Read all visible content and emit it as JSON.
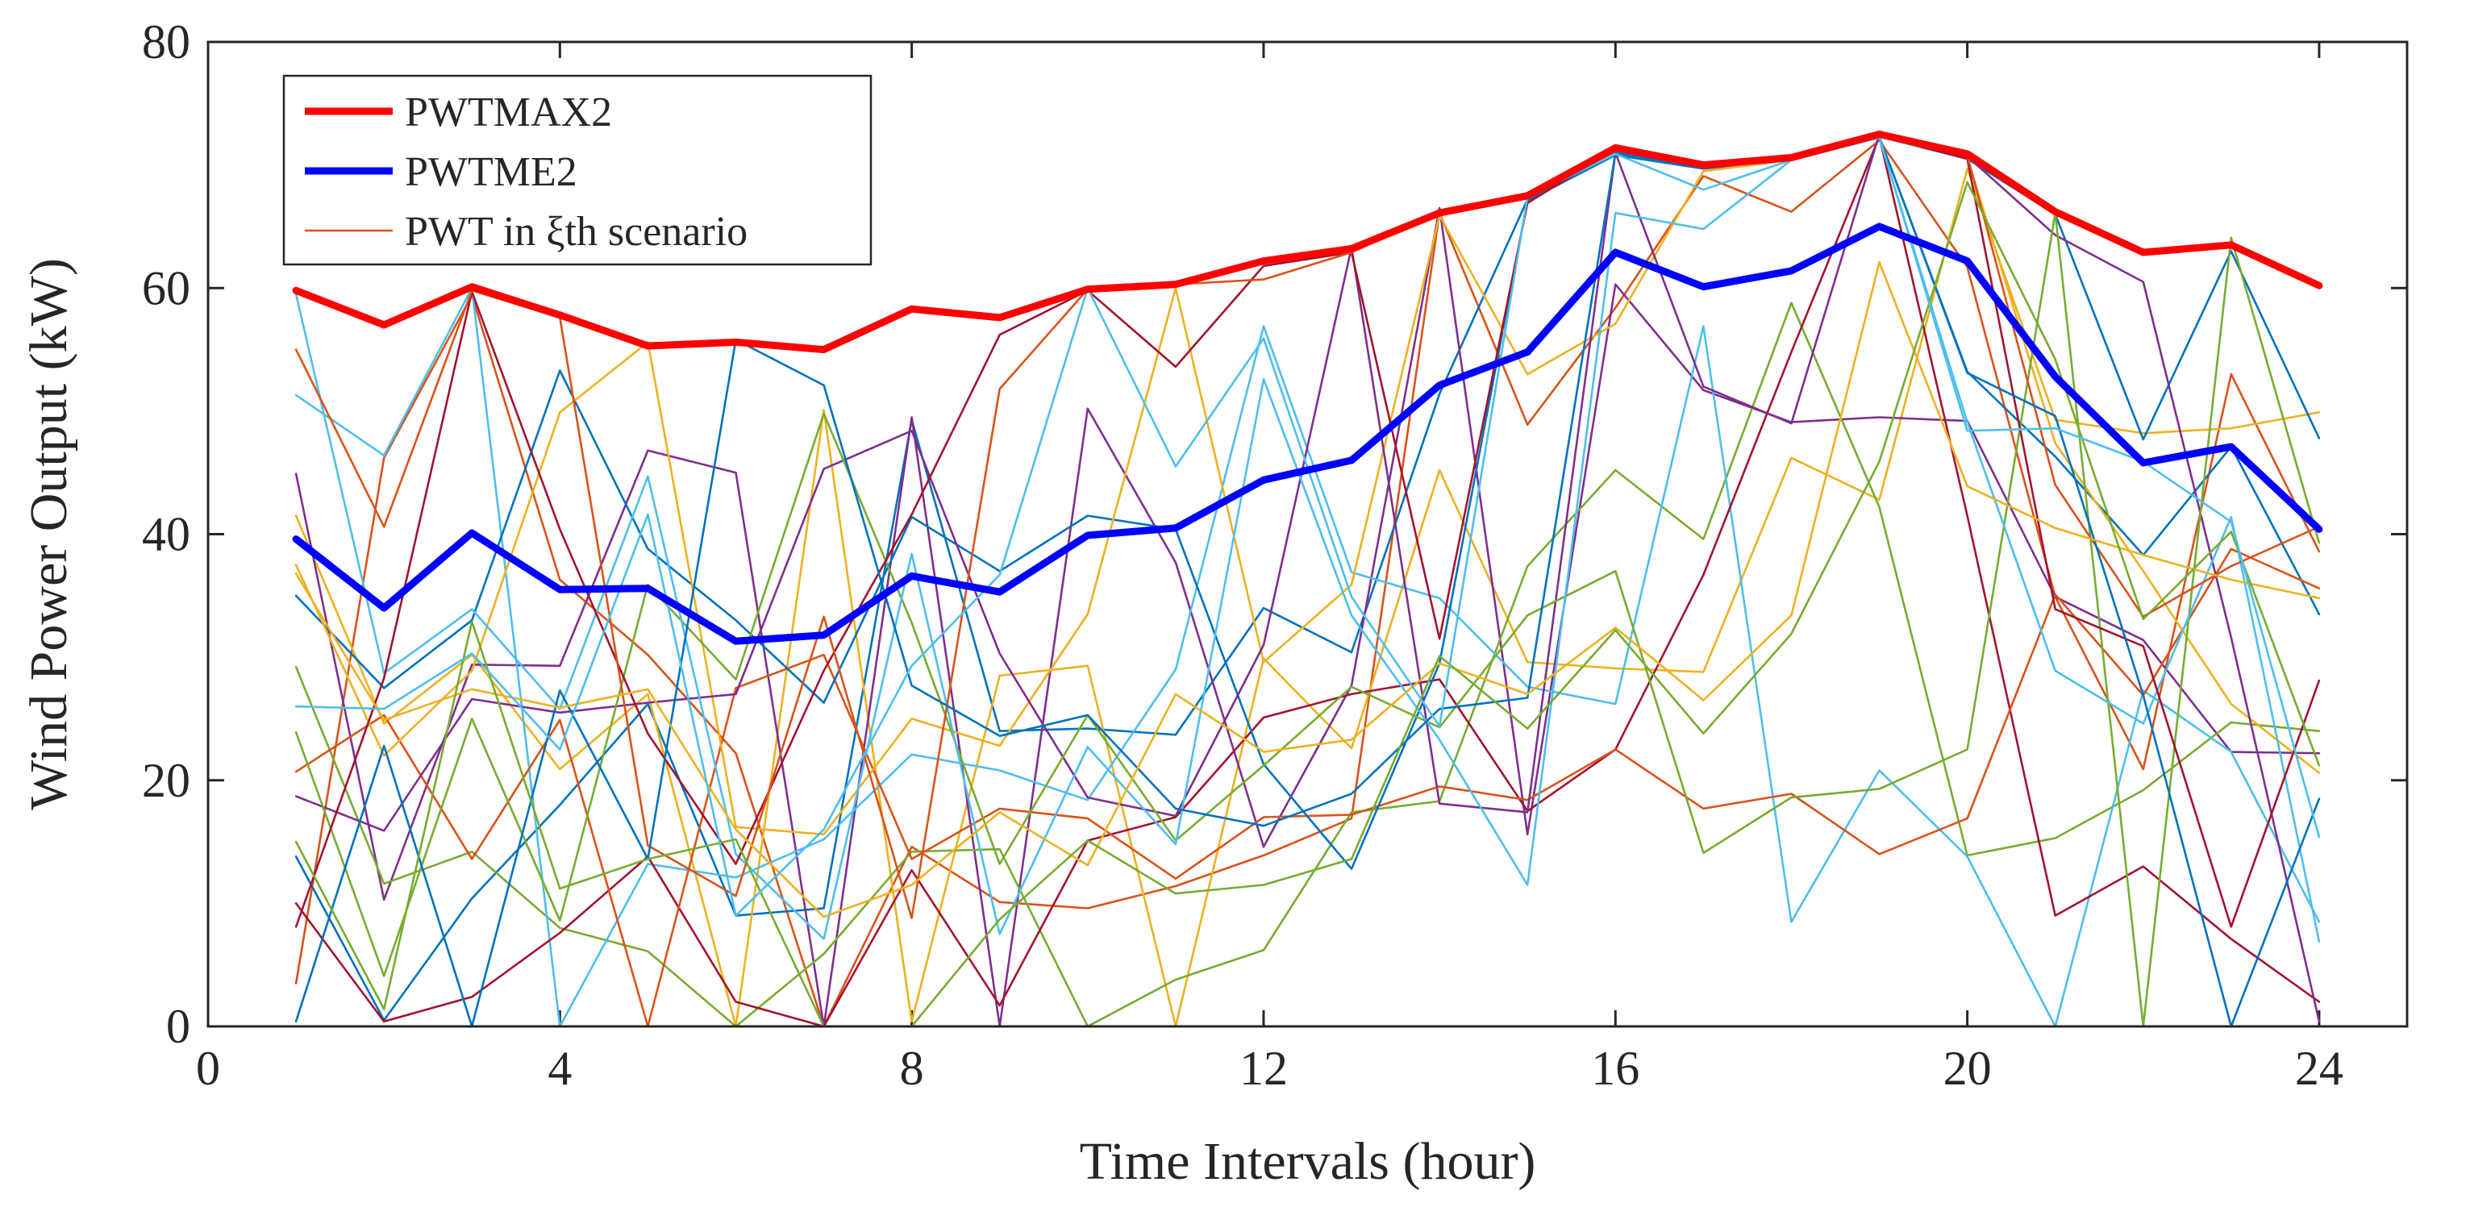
{
  "chart_data": {
    "type": "line",
    "title": "",
    "xlabel": "Time Intervals (hour)",
    "ylabel": "Wind Power Output (kW)",
    "xlim": [
      0,
      25
    ],
    "ylim": [
      0,
      80
    ],
    "x_ticks": [
      0,
      4,
      8,
      12,
      16,
      20,
      24
    ],
    "x_tick_labels": [
      "0",
      "4",
      "8",
      "12",
      "16",
      "20",
      "24"
    ],
    "y_ticks": [
      0,
      20,
      40,
      60,
      80
    ],
    "y_tick_labels": [
      "0",
      "20",
      "40",
      "60",
      "80"
    ],
    "legend_position": "top-left",
    "x": [
      1,
      2,
      3,
      4,
      5,
      6,
      7,
      8,
      9,
      10,
      11,
      12,
      13,
      14,
      15,
      16,
      17,
      18,
      19,
      20,
      21,
      22,
      23,
      24
    ],
    "series": [
      {
        "name": "PWTMAX2",
        "role": "max",
        "color": "#ff0000",
        "values": [
          59.8,
          57.0,
          60.1,
          57.8,
          55.3,
          55.6,
          55.0,
          58.3,
          57.6,
          59.9,
          60.3,
          62.2,
          63.2,
          66.1,
          67.5,
          71.4,
          70.0,
          70.6,
          72.5,
          70.9,
          66.2,
          62.9,
          63.5,
          60.2
        ]
      },
      {
        "name": "PWTME2",
        "role": "mean",
        "color": "#0000ff",
        "values": [
          39.6,
          34.0,
          40.1,
          35.5,
          35.6,
          31.3,
          31.8,
          36.6,
          35.3,
          39.9,
          40.5,
          44.4,
          46.0,
          52.1,
          54.8,
          62.9,
          60.1,
          61.4,
          65.0,
          62.2,
          52.8,
          45.8,
          47.1,
          40.4
        ]
      },
      {
        "name": "PWT in ξth scenario",
        "role": "scenario",
        "color": "#d95319",
        "values": [
          3.5,
          46.2,
          59.4,
          36.3,
          30.2,
          22.2,
          0.0,
          14.6,
          10.1,
          9.6,
          11.4,
          13.9,
          16.9,
          66.1,
          48.9,
          58.4,
          69.1,
          66.2,
          72.0,
          61.7,
          34.9,
          20.9,
          53.0,
          38.6
        ]
      },
      {
        "name": "",
        "role": "scenario",
        "color": "#0072bd",
        "values": [
          13.8,
          0.5,
          10.4,
          18.0,
          26.2,
          9.0,
          9.6,
          49.3,
          24.0,
          24.2,
          23.7,
          34.0,
          30.4,
          51.4,
          67.2,
          70.9,
          69.8,
          70.4,
          72.3,
          53.2,
          46.3,
          38.3,
          47.1,
          33.5
        ]
      },
      {
        "name": "",
        "role": "scenario",
        "color": "#edb120",
        "values": [
          41.5,
          24.6,
          30.2,
          20.9,
          27.0,
          0.0,
          50.1,
          0.4,
          28.5,
          29.3,
          0.0,
          29.9,
          22.6,
          45.2,
          29.6,
          29.1,
          28.8,
          46.2,
          42.8,
          69.7,
          49.3,
          48.2,
          48.6,
          49.9
        ]
      },
      {
        "name": "",
        "role": "scenario",
        "color": "#7e2f8e",
        "values": [
          44.9,
          10.3,
          29.4,
          29.3,
          46.8,
          45.0,
          0.0,
          49.5,
          0.0,
          50.2,
          37.7,
          14.6,
          27.7,
          66.5,
          15.6,
          60.3,
          51.7,
          49.1,
          49.5,
          49.2,
          34.9,
          31.4,
          22.3,
          22.2
        ]
      },
      {
        "name": "",
        "role": "scenario",
        "color": "#77ac30",
        "values": [
          29.2,
          11.6,
          14.2,
          8.0,
          6.1,
          0.0,
          5.9,
          14.2,
          14.4,
          0.0,
          3.8,
          6.2,
          17.4,
          18.3,
          37.4,
          45.2,
          39.6,
          58.8,
          42.2,
          13.9,
          15.3,
          19.2,
          24.7,
          24.0
        ]
      },
      {
        "name": "",
        "role": "scenario",
        "color": "#4dbeee",
        "values": [
          51.3,
          46.4,
          60.0,
          0.0,
          13.2,
          12.1,
          15.2,
          22.1,
          20.8,
          18.4,
          29.0,
          56.9,
          36.9,
          34.8,
          27.6,
          26.2,
          56.9,
          8.5,
          20.8,
          13.8,
          0.0,
          27.3,
          22.3,
          8.5
        ]
      },
      {
        "name": "",
        "role": "scenario",
        "color": "#a2142f",
        "values": [
          10.0,
          0.4,
          2.4,
          7.6,
          13.8,
          2.0,
          0.0,
          12.7,
          1.7,
          15.1,
          17.0,
          25.1,
          27.0,
          28.2,
          17.5,
          22.5,
          36.7,
          54.8,
          72.3,
          41.5,
          9.0,
          13.0,
          7.1,
          2.0
        ]
      },
      {
        "name": "",
        "role": "scenario",
        "color": "#d95319",
        "values": [
          20.7,
          25.3,
          13.6,
          24.9,
          0.0,
          27.5,
          30.2,
          13.6,
          17.7,
          16.9,
          12.0,
          17.0,
          17.2,
          19.5,
          18.4,
          22.5,
          17.7,
          18.9,
          14.0,
          16.9,
          35.1,
          26.9,
          38.8,
          35.6
        ]
      },
      {
        "name": "",
        "role": "scenario",
        "color": "#0072bd",
        "values": [
          35.0,
          27.5,
          33.0,
          53.3,
          38.8,
          33.0,
          26.3,
          41.4,
          37.0,
          41.5,
          40.4,
          21.3,
          12.8,
          29.5,
          67.1,
          70.8,
          69.7,
          70.4,
          72.3,
          70.5,
          66.0,
          47.7,
          63.0,
          47.8
        ]
      },
      {
        "name": "",
        "role": "scenario",
        "color": "#edb120",
        "values": [
          37.5,
          22.0,
          28.9,
          49.9,
          55.6,
          16.2,
          15.6,
          25.0,
          22.8,
          33.5,
          60.0,
          29.6,
          35.9,
          65.9,
          53.0,
          57.1,
          69.5,
          70.4,
          72.3,
          70.6,
          47.4,
          37.0,
          26.2,
          20.6
        ]
      },
      {
        "name": "",
        "role": "scenario",
        "color": "#7e2f8e",
        "values": [
          18.7,
          15.9,
          26.6,
          25.5,
          26.3,
          27.0,
          45.3,
          48.4,
          30.3,
          18.6,
          17.1,
          31.0,
          63.3,
          18.1,
          17.4,
          71.0,
          52.0,
          49.0,
          72.5,
          70.7,
          64.3,
          60.5,
          31.6,
          0.4
        ]
      },
      {
        "name": "",
        "role": "scenario",
        "color": "#77ac30",
        "values": [
          23.9,
          4.1,
          25.0,
          8.6,
          35.9,
          28.2,
          49.8,
          32.8,
          13.2,
          25.3,
          15.1,
          21.2,
          27.6,
          24.3,
          33.4,
          37.0,
          14.1,
          18.6,
          19.3,
          22.5,
          66.1,
          0.0,
          64.1,
          39.3
        ]
      },
      {
        "name": "",
        "role": "scenario",
        "color": "#4dbeee",
        "values": [
          59.5,
          28.7,
          33.9,
          25.8,
          44.7,
          14.0,
          7.1,
          38.4,
          7.5,
          22.7,
          14.8,
          52.6,
          33.4,
          23.3,
          11.5,
          66.1,
          64.8,
          70.4,
          72.2,
          49.1,
          28.9,
          24.6,
          41.4,
          6.9
        ]
      },
      {
        "name": "",
        "role": "scenario",
        "color": "#a2142f",
        "values": [
          8.1,
          28.3,
          59.7,
          40.4,
          23.8,
          13.2,
          28.9,
          41.6,
          56.2,
          59.8,
          53.6,
          61.8,
          62.9,
          31.5,
          66.9,
          71.3,
          69.9,
          70.5,
          72.4,
          70.5,
          33.9,
          30.9,
          8.1,
          28.1
        ]
      },
      {
        "name": "",
        "role": "scenario",
        "color": "#d95319",
        "values": [
          55.0,
          40.6,
          59.8,
          57.6,
          14.7,
          10.6,
          33.3,
          8.8,
          51.8,
          59.9,
          60.3,
          60.7,
          62.9,
          66.1,
          67.4,
          71.1,
          70.0,
          70.5,
          72.3,
          70.8,
          44.0,
          33.3,
          37.4,
          40.6
        ]
      },
      {
        "name": "",
        "role": "scenario",
        "color": "#0072bd",
        "values": [
          0.4,
          22.8,
          0.0,
          27.3,
          13.6,
          55.8,
          52.1,
          27.7,
          23.6,
          25.3,
          17.7,
          16.3,
          18.9,
          25.8,
          26.7,
          71.0,
          69.9,
          70.5,
          72.3,
          53.1,
          49.6,
          26.9,
          0.0,
          18.5
        ]
      },
      {
        "name": "",
        "role": "scenario",
        "color": "#edb120",
        "values": [
          36.8,
          24.9,
          27.4,
          25.9,
          27.4,
          16.0,
          8.9,
          11.5,
          17.4,
          13.1,
          27.0,
          22.3,
          23.3,
          29.5,
          27.0,
          32.4,
          26.5,
          33.4,
          62.1,
          43.9,
          40.5,
          38.3,
          36.3,
          34.8
        ]
      },
      {
        "name": "",
        "role": "scenario",
        "color": "#77ac30",
        "values": [
          15.0,
          1.4,
          32.9,
          11.2,
          13.6,
          15.2,
          0.0,
          0.0,
          8.7,
          15.1,
          10.8,
          11.5,
          13.6,
          30.1,
          24.2,
          32.2,
          23.8,
          31.9,
          45.9,
          68.6,
          54.2,
          33.1,
          40.2,
          21.2
        ]
      },
      {
        "name": "",
        "role": "scenario",
        "color": "#4dbeee",
        "values": [
          26.0,
          25.8,
          30.3,
          22.5,
          41.6,
          9.0,
          16.0,
          29.3,
          36.7,
          60.0,
          45.5,
          55.9,
          34.9,
          24.4,
          67.4,
          70.9,
          68.0,
          70.4,
          72.3,
          48.4,
          48.6,
          45.9,
          41.0,
          15.4
        ]
      }
    ]
  }
}
